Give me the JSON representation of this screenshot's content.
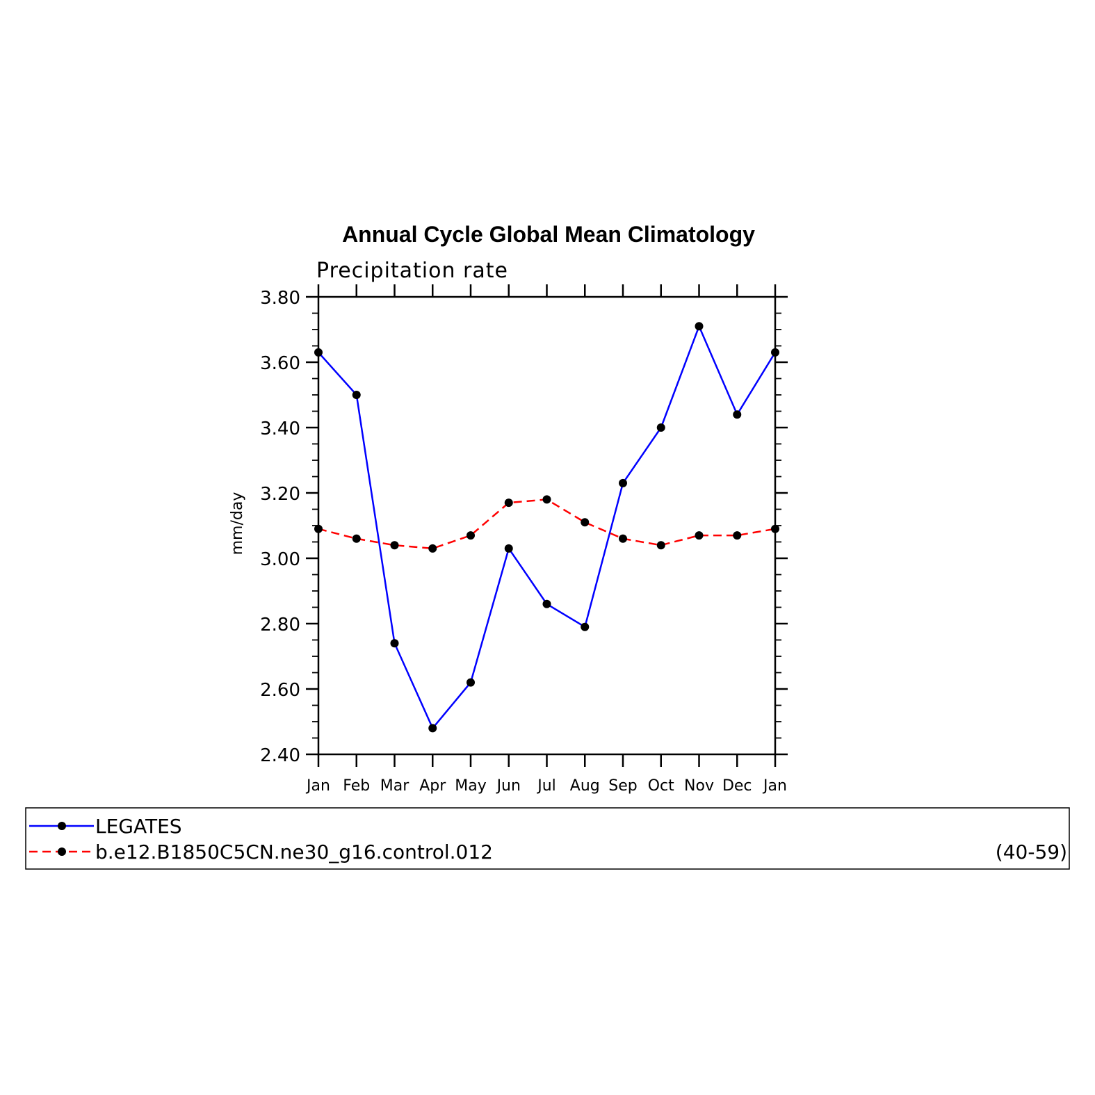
{
  "chart_data": {
    "type": "line",
    "title": "Annual Cycle Global Mean Climatology",
    "subtitle": "Precipitation rate",
    "xlabel": "",
    "ylabel": "mm/day",
    "ylim": [
      2.4,
      3.8
    ],
    "yticks": [
      "2.40",
      "2.60",
      "2.80",
      "3.00",
      "3.20",
      "3.40",
      "3.60",
      "3.80"
    ],
    "categories": [
      "Jan",
      "Feb",
      "Mar",
      "Apr",
      "May",
      "Jun",
      "Jul",
      "Aug",
      "Sep",
      "Oct",
      "Nov",
      "Dec",
      "Jan"
    ],
    "series": [
      {
        "name": "LEGATES",
        "color": "#0000ff",
        "line_style": "solid",
        "marker": "dot",
        "values": [
          3.63,
          3.5,
          2.74,
          2.48,
          2.62,
          3.03,
          2.86,
          2.79,
          3.23,
          3.4,
          3.71,
          3.44,
          3.63
        ]
      },
      {
        "name": "b.e12.B1850C5CN.ne30_g16.control.012",
        "color": "#ff0000",
        "line_style": "dashed",
        "marker": "dot",
        "values": [
          3.09,
          3.06,
          3.04,
          3.03,
          3.07,
          3.17,
          3.18,
          3.11,
          3.06,
          3.04,
          3.07,
          3.07,
          3.09
        ]
      }
    ],
    "legend": {
      "placement": "bottom",
      "entries": [
        {
          "label": "LEGATES",
          "note": ""
        },
        {
          "label": "b.e12.B1850C5CN.ne30_g16.control.012",
          "note": "(40-59)"
        }
      ]
    },
    "grid": false
  }
}
